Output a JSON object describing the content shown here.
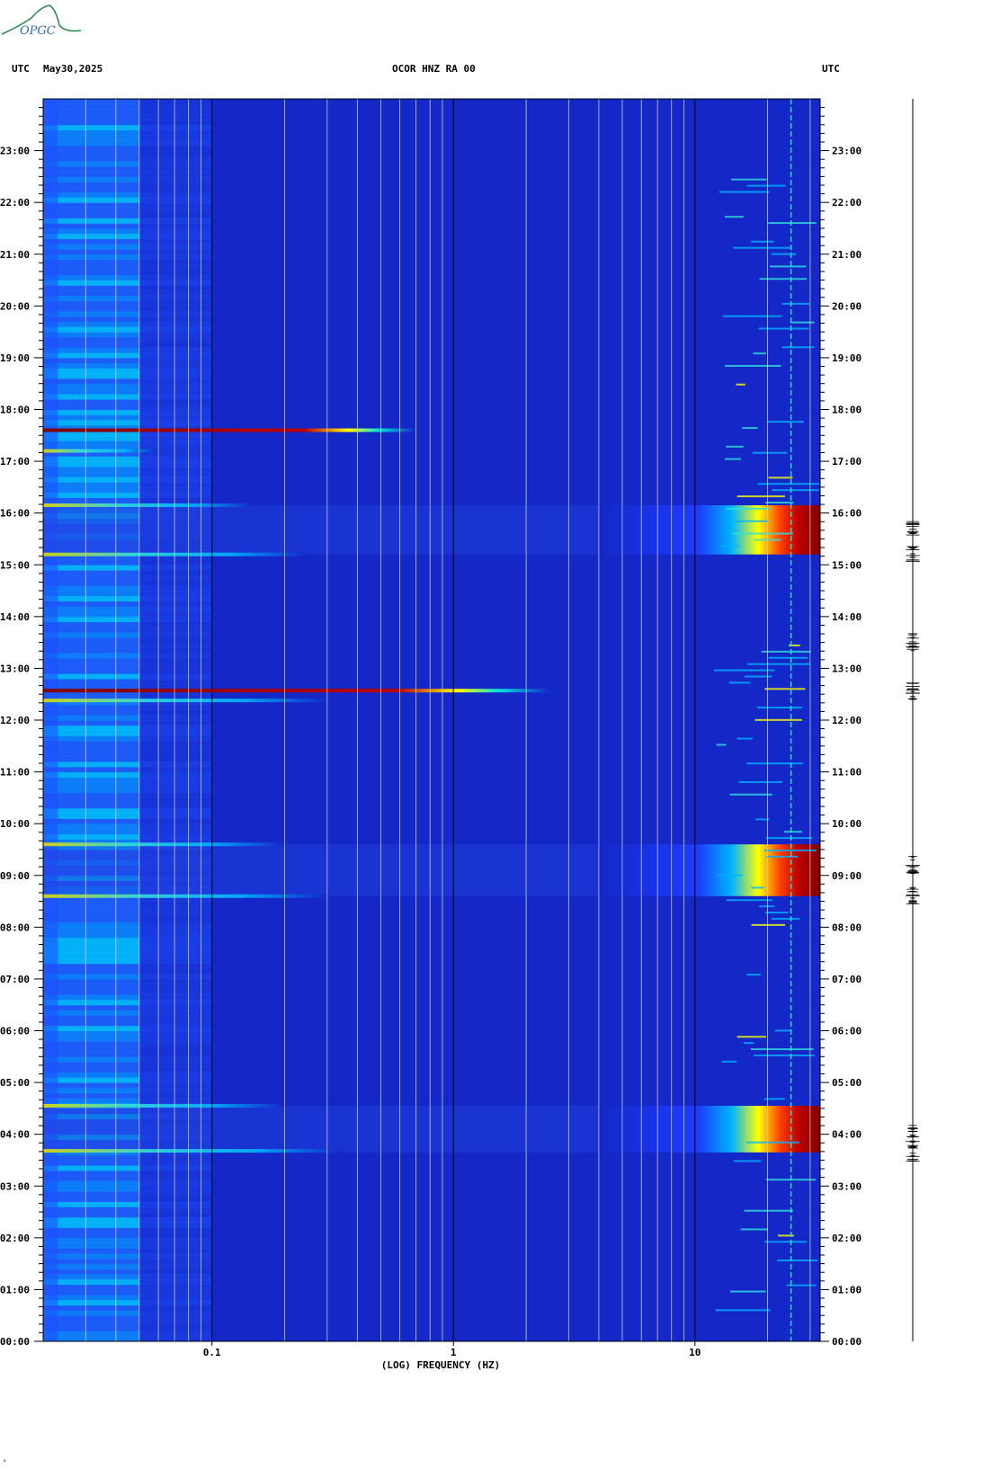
{
  "header": {
    "left_tz": "UTC",
    "date": "May30,2025",
    "station": "OCOR HNZ RA 00",
    "right_tz": "UTC"
  },
  "logo": {
    "text": "OPGC"
  },
  "footer_mark": "*",
  "chart_data": {
    "type": "heatmap",
    "title": "OCOR HNZ RA 00",
    "xlabel": "(LOG) FREQUENCY (HZ)",
    "xscale": "log",
    "xlim": [
      0.02,
      33
    ],
    "x_ticks": [
      {
        "value": 0.1,
        "label": "0.1"
      },
      {
        "value": 1,
        "label": "1"
      },
      {
        "value": 10,
        "label": "10"
      }
    ],
    "ylabel": "UTC",
    "ylim_hours": [
      0,
      24
    ],
    "y_ticks": [
      "00:00",
      "01:00",
      "02:00",
      "03:00",
      "04:00",
      "05:00",
      "06:00",
      "07:00",
      "08:00",
      "09:00",
      "10:00",
      "11:00",
      "12:00",
      "13:00",
      "14:00",
      "15:00",
      "16:00",
      "17:00",
      "18:00",
      "19:00",
      "20:00",
      "21:00",
      "22:00",
      "23:00"
    ],
    "colormap": [
      "#00007f",
      "#0000d0",
      "#1e3cff",
      "#00b4ff",
      "#30e0d8",
      "#ffff00",
      "#ff8000",
      "#c00000",
      "#800000"
    ],
    "background_color": "#1428c8",
    "broadband_events": [
      {
        "start_hour": 3.65,
        "end_hour": 4.55,
        "min_freq_hz": 4
      },
      {
        "start_hour": 8.6,
        "end_hour": 9.6,
        "min_freq_hz": 4
      },
      {
        "start_hour": 15.2,
        "end_hour": 16.15,
        "min_freq_hz": 4
      }
    ],
    "line_events": [
      {
        "hour": 17.6,
        "max_freq_hz": 0.7,
        "strength": 1.0
      },
      {
        "hour": 12.57,
        "max_freq_hz": 2.5,
        "strength": 1.0
      },
      {
        "hour": 3.68,
        "max_freq_hz": 0.35,
        "strength": 0.55
      },
      {
        "hour": 4.55,
        "max_freq_hz": 0.2,
        "strength": 0.45
      },
      {
        "hour": 8.6,
        "max_freq_hz": 0.3,
        "strength": 0.45
      },
      {
        "hour": 9.6,
        "max_freq_hz": 0.2,
        "strength": 0.45
      },
      {
        "hour": 15.2,
        "max_freq_hz": 0.25,
        "strength": 0.45
      },
      {
        "hour": 16.15,
        "max_freq_hz": 0.15,
        "strength": 0.45
      },
      {
        "hour": 12.38,
        "max_freq_hz": 0.3,
        "strength": 0.5
      },
      {
        "hour": 17.2,
        "max_freq_hz": 0.06,
        "strength": 0.4
      }
    ],
    "constant_line_freq_hz": 25,
    "seismogram_bursts_hours": [
      3.65,
      4.0,
      8.6,
      9.2,
      12.55,
      13.5,
      15.2,
      15.7
    ]
  }
}
